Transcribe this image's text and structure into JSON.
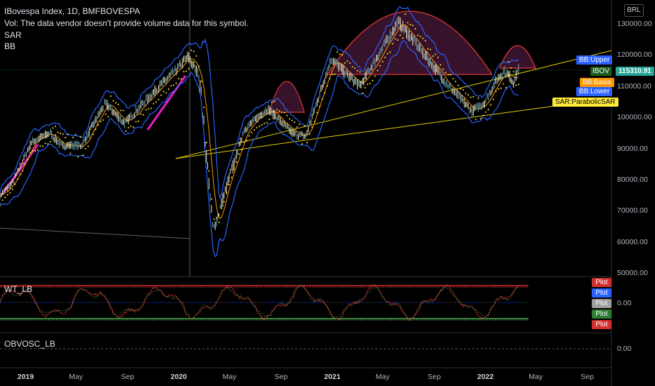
{
  "header": {
    "title": "IBovespa Index, 1D, BMFBOVESPA",
    "vol": "Vol: The data vendor doesn't provide volume data for this symbol.",
    "sar": "SAR",
    "bb": "BB"
  },
  "currency": "BRL",
  "labels": {
    "bb_upper": "BB:Upper",
    "ibov": "IBOV",
    "last_price": "115310.91",
    "bb_basis": "BB:Basis",
    "bb_lower": "BB:Lower",
    "sar": "SAR:ParabolicSAR"
  },
  "panes": {
    "wt": {
      "title": "WT_LB",
      "zero": "0.00",
      "plot_labels": [
        "Plot",
        "Plot",
        "Plot",
        "Plot",
        "Plot"
      ]
    },
    "obv": {
      "title": "OBVOSC_LB",
      "zero": "0.00"
    }
  },
  "colors": {
    "upper": "#2962ff",
    "basis": "#ff9800",
    "price_up": "#e8e6c0",
    "sar": "#ffeb3b",
    "trend": "#ffe600",
    "arc_fill": "#4a1a3a",
    "arc_stroke": "#e53935",
    "magenta": "#e91ec8",
    "wt_red": "#d32f2f",
    "wt_green": "#4caf50",
    "ibov": "#26a69a",
    "plot_gray": "#9e9e9e"
  },
  "chart_data": {
    "type": "line",
    "title": "IBovespa Index, 1D, BMFBOVESPA",
    "y_ticks": [
      "130000.00",
      "120000.00",
      "110000.00",
      "100000.00",
      "90000.00",
      "80000.00",
      "70000.00",
      "60000.00",
      "50000.00"
    ],
    "x_ticks": [
      {
        "label": "2019",
        "bold": true
      },
      {
        "label": "May",
        "bold": false
      },
      {
        "label": "Sep",
        "bold": false
      },
      {
        "label": "2020",
        "bold": true
      },
      {
        "label": "May",
        "bold": false
      },
      {
        "label": "Sep",
        "bold": false
      },
      {
        "label": "2021",
        "bold": true
      },
      {
        "label": "May",
        "bold": false
      },
      {
        "label": "Sep",
        "bold": false
      },
      {
        "label": "2022",
        "bold": true
      },
      {
        "label": "May",
        "bold": false
      },
      {
        "label": "Sep",
        "bold": false
      }
    ],
    "ylim": [
      50000,
      135000
    ],
    "last_price": 115310.91,
    "series": [
      {
        "name": "IBOV",
        "points": [
          [
            "2018-11-01",
            75000
          ],
          [
            "2018-12-01",
            79000
          ],
          [
            "2019-01-15",
            92000
          ],
          [
            "2019-03-01",
            95000
          ],
          [
            "2019-03-25",
            91000
          ],
          [
            "2019-05-15",
            91000
          ],
          [
            "2019-07-10",
            104500
          ],
          [
            "2019-08-25",
            98000
          ],
          [
            "2019-10-25",
            107000
          ],
          [
            "2019-12-31",
            115900
          ],
          [
            "2020-01-23",
            119500
          ],
          [
            "2020-02-20",
            113000
          ],
          [
            "2020-03-23",
            63500
          ],
          [
            "2020-04-30",
            80000
          ],
          [
            "2020-06-05",
            96000
          ],
          [
            "2020-07-31",
            102800
          ],
          [
            "2020-09-30",
            94600
          ],
          [
            "2020-10-30",
            93950
          ],
          [
            "2020-12-30",
            119000
          ],
          [
            "2021-01-25",
            115000
          ],
          [
            "2021-03-08",
            110000
          ],
          [
            "2021-06-07",
            130700
          ],
          [
            "2021-07-30",
            121800
          ],
          [
            "2021-09-30",
            110900
          ],
          [
            "2021-11-30",
            101900
          ],
          [
            "2021-12-30",
            104800
          ],
          [
            "2022-01-28",
            112000
          ],
          [
            "2022-02-15",
            114800
          ],
          [
            "2022-03-01",
            113000
          ],
          [
            "2022-03-08",
            111000
          ],
          [
            "2022-03-21",
            115310.91
          ]
        ]
      }
    ]
  }
}
